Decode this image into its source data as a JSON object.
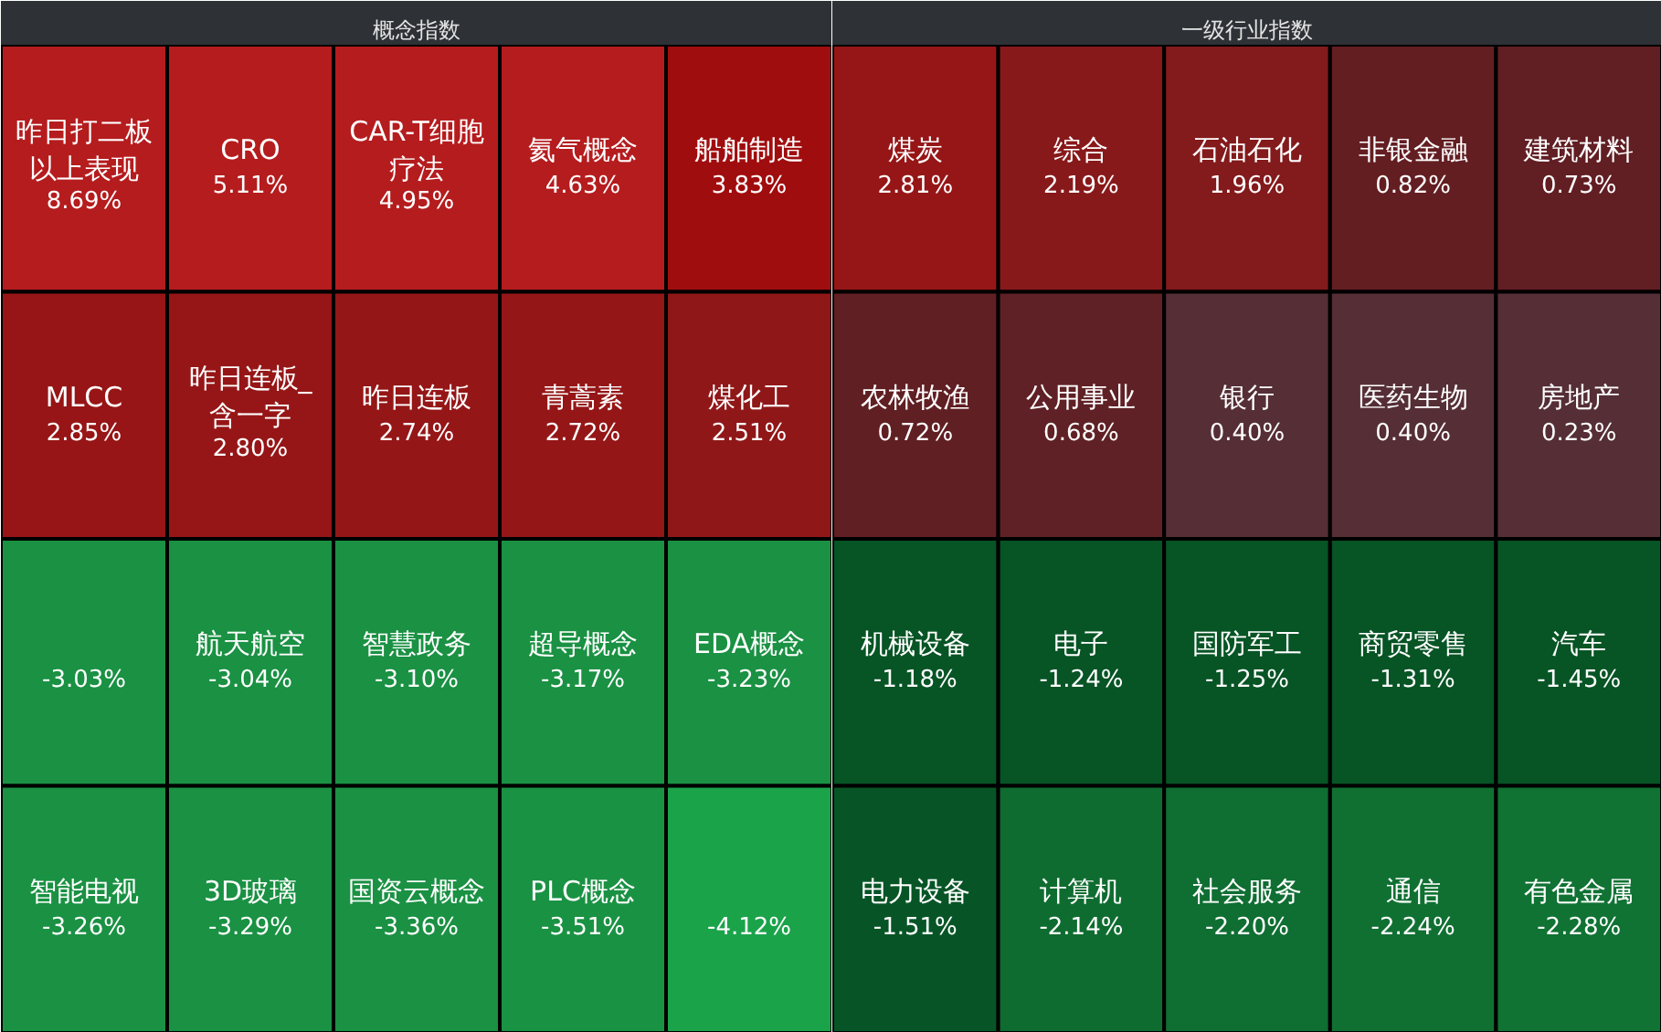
{
  "chart_data": [
    {
      "type": "other",
      "title": "概念指数",
      "categories": [
        "昨日打二板以上表现",
        "CRO",
        "CAR-T细胞疗法",
        "氦气概念",
        "船舶制造",
        "MLCC",
        "昨日连板_含一字",
        "昨日连板",
        "青蒿素",
        "煤化工",
        null,
        "航天航空",
        "智慧政务",
        "超导概念",
        "EDA概念",
        "智能电视",
        "3D玻璃",
        "国资云概念",
        "PLC概念",
        null
      ],
      "values": [
        8.69,
        5.11,
        4.95,
        4.63,
        3.83,
        2.85,
        2.8,
        2.74,
        2.72,
        2.51,
        -3.03,
        -3.04,
        -3.1,
        -3.17,
        -3.23,
        -3.26,
        -3.29,
        -3.36,
        -3.51,
        -4.12
      ],
      "value_labels": [
        "8.69%",
        "5.11%",
        "4.95%",
        "4.63%",
        "3.83%",
        "2.85%",
        "2.80%",
        "2.74%",
        "2.72%",
        "2.51%",
        "-3.03%",
        "-3.04%",
        "-3.10%",
        "-3.17%",
        "-3.23%",
        "-3.26%",
        "-3.29%",
        "-3.36%",
        "-3.51%",
        "-4.12%"
      ]
    },
    {
      "type": "other",
      "title": "一级行业指数",
      "categories": [
        "煤炭",
        "综合",
        "石油石化",
        "非银金融",
        "建筑材料",
        "农林牧渔",
        "公用事业",
        "银行",
        "医药生物",
        "房地产",
        "机械设备",
        "电子",
        "国防军工",
        "商贸零售",
        "汽车",
        "电力设备",
        "计算机",
        "社会服务",
        "通信",
        "有色金属"
      ],
      "values": [
        2.81,
        2.19,
        1.96,
        0.82,
        0.73,
        0.72,
        0.68,
        0.4,
        0.4,
        0.23,
        -1.18,
        -1.24,
        -1.25,
        -1.31,
        -1.45,
        -1.51,
        -2.14,
        -2.2,
        -2.24,
        -2.28
      ],
      "value_labels": [
        "2.81%",
        "2.19%",
        "1.96%",
        "0.82%",
        "0.73%",
        "0.72%",
        "0.68%",
        "0.40%",
        "0.40%",
        "0.23%",
        "-1.18%",
        "-1.24%",
        "-1.25%",
        "-1.31%",
        "-1.45%",
        "-1.51%",
        "-2.14%",
        "-2.20%",
        "-2.24%",
        "-2.28%"
      ]
    }
  ]
}
